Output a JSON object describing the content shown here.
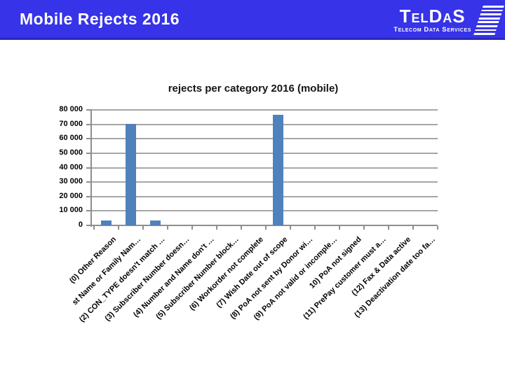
{
  "header": {
    "title": "Mobile Rejects 2016",
    "logo_name": "TelDaS",
    "logo_subtitle": "Telecom Data Services",
    "background_color": "#3633e8",
    "border_color": "#2b28c0",
    "text_color": "#ffffff"
  },
  "chart_data": {
    "type": "bar",
    "title": "rejects per category 2016 (mobile)",
    "categories": [
      "(0) Other Reason",
      "st Name or Family Nam…",
      "(2) CON_TYPE doesn't match …",
      "(3) Subscriber Number doesn…",
      "(4) Number and Name don't …",
      "(5) Subscriber Number block…",
      "(6) Workorder not complete",
      "(7) Wish Date out of scope",
      "(8) PoA not sent by Donor wi…",
      "(9) PoA not valid or incomple…",
      "10) PoA not signed",
      "(11) PrePay customer must a…",
      "(12) Fax & Data active",
      "(13) Deactivation date too fa…"
    ],
    "values": [
      3500,
      70500,
      3600,
      0,
      0,
      0,
      0,
      76500,
      0,
      0,
      0,
      0,
      0,
      0
    ],
    "xlabel": "",
    "ylabel": "",
    "ylim": [
      0,
      80000
    ],
    "ytick_labels": [
      "0",
      "10 000",
      "20 000",
      "30 000",
      "40 000",
      "50 000",
      "60 000",
      "70 000",
      "80 000"
    ],
    "grid": true,
    "legend": false,
    "xlabel_rotation_deg": -45,
    "bar_color": "#4f81bd",
    "gridline_color": "#a6a6a6",
    "axis_color": "#8e8e8e"
  }
}
